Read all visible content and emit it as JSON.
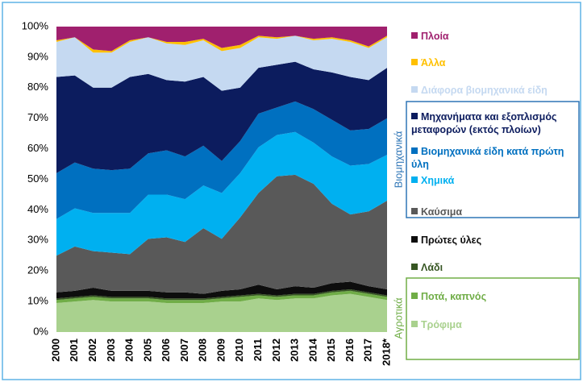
{
  "chart_data": {
    "type": "stacked-area",
    "categories": [
      "2000",
      "2001",
      "2002",
      "2003",
      "2004",
      "2005",
      "2006",
      "2007",
      "2008",
      "2009",
      "2010",
      "2011",
      "2012",
      "2013",
      "2014",
      "2015",
      "2016",
      "2017",
      "2018*"
    ],
    "ylim": [
      0,
      100
    ],
    "yticks": [
      {
        "value": 0,
        "label": "0%"
      },
      {
        "value": 10,
        "label": "10%"
      },
      {
        "value": 20,
        "label": "20%"
      },
      {
        "value": 30,
        "label": "30%"
      },
      {
        "value": 40,
        "label": "40%"
      },
      {
        "value": 50,
        "label": "50%"
      },
      {
        "value": 60,
        "label": "60%"
      },
      {
        "value": 70,
        "label": "70%"
      },
      {
        "value": 80,
        "label": "80%"
      },
      {
        "value": 90,
        "label": "90%"
      },
      {
        "value": 100,
        "label": "100%"
      }
    ],
    "groups": [
      "Βιομηχανικά",
      "Αγροτικά"
    ],
    "series": [
      {
        "name": "Τρόφιμα",
        "color": "#a9d18e",
        "values": [
          9.5,
          10,
          10.5,
          10,
          10,
          10,
          9.5,
          9.5,
          9.5,
          10,
          10,
          11,
          10.5,
          11,
          11,
          12,
          12.5,
          11.5,
          10.5
        ]
      },
      {
        "name": "Ποτά, καπνός",
        "color": "#70ad47",
        "values": [
          1,
          1,
          1,
          1,
          1,
          1,
          1,
          1,
          1,
          1,
          1.5,
          1,
          1,
          1,
          1,
          1,
          1,
          1,
          1
        ]
      },
      {
        "name": "Λάδι",
        "color": "#375623",
        "values": [
          0.5,
          0.5,
          0.5,
          0.5,
          0.5,
          0.5,
          0.5,
          0.5,
          0.5,
          0.5,
          0.5,
          0.5,
          0.5,
          0.5,
          0.5,
          0.5,
          0.5,
          0.5,
          0.5
        ]
      },
      {
        "name": "Πρώτες ύλες",
        "color": "#0d0d0d",
        "values": [
          2,
          2,
          2.5,
          2,
          2,
          2,
          2,
          2,
          1.5,
          2,
          2,
          3,
          2,
          2.5,
          2,
          2.5,
          2.5,
          2,
          2
        ]
      },
      {
        "name": "Καύσιμα",
        "color": "#595959",
        "values": [
          12,
          14.5,
          12,
          12.5,
          12,
          17,
          18,
          16.5,
          21.5,
          17,
          23.5,
          30,
          37,
          36.5,
          34,
          26,
          22,
          24.5,
          29
        ]
      },
      {
        "name": "Χημικά",
        "color": "#00b0f0",
        "values": [
          12,
          12.5,
          12.5,
          13,
          13.5,
          14.5,
          14,
          14,
          14,
          15,
          14.5,
          15,
          13.5,
          14,
          13.5,
          15.5,
          16,
          15.5,
          15
        ]
      },
      {
        "name": "Βιομηχανικά είδη κατά πρώτη ύλη",
        "color": "#0070c0",
        "values": [
          15,
          15,
          14.5,
          14,
          14.5,
          13.5,
          14.5,
          14,
          13,
          10.5,
          10.5,
          11,
          9,
          10,
          11,
          12,
          11.5,
          11.5,
          12
        ]
      },
      {
        "name": "Μηχανήματα και εξοπλισμός μεταφορών (εκτός πλοίων)",
        "color": "#0c1c5e",
        "values": [
          31.5,
          28.5,
          26.5,
          27,
          30,
          26,
          23,
          24.5,
          22.5,
          23,
          17.5,
          15,
          14,
          13,
          13,
          15.5,
          17.5,
          16,
          16.5
        ]
      },
      {
        "name": "Διάφορα βιομηχανικά είδη",
        "color": "#c5d9f1",
        "values": [
          11.5,
          12.5,
          11.5,
          11.5,
          11.5,
          12,
          12,
          12,
          12,
          13,
          13,
          10,
          8.5,
          8.5,
          9.5,
          11,
          11.5,
          10.5,
          10
        ]
      },
      {
        "name": "Άλλα",
        "color": "#ffc000",
        "values": [
          0.5,
          0,
          1,
          0.5,
          0.5,
          0,
          0.5,
          1,
          0.5,
          1,
          1,
          0.5,
          0.5,
          0,
          0.5,
          0.5,
          0.5,
          0.5,
          0.5
        ]
      },
      {
        "name": "Πλοία",
        "color": "#a0206e",
        "values": [
          4.5,
          3.5,
          7.5,
          8,
          4.5,
          3.5,
          5,
          5,
          4,
          7,
          6,
          3,
          3.5,
          3,
          4,
          3.5,
          4.5,
          6.5,
          3
        ]
      }
    ]
  }
}
